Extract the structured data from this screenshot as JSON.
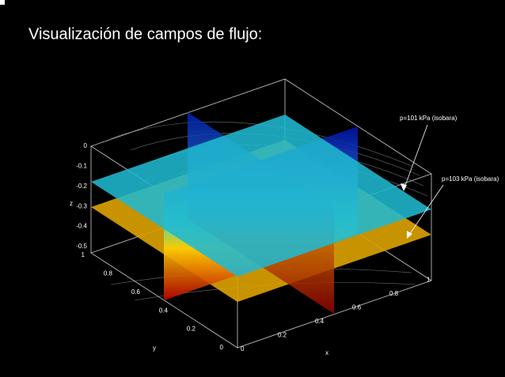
{
  "header": {
    "title": "Visualización de campos de flujo:"
  },
  "plot": {
    "annotations": [
      "p=101 kPa  (isobara)",
      "p=103 kPa (isobara)"
    ],
    "axis_labels": {
      "x": "x",
      "y": "y",
      "z": "z"
    },
    "z_ticks": [
      "0",
      "-0.1",
      "-0.2",
      "-0.3",
      "-0.4",
      "-0.5"
    ],
    "y_ticks": [
      "1",
      "0.8",
      "0.6",
      "0.4",
      "0.2",
      "0"
    ],
    "x_ticks": [
      "0",
      "0.2",
      "0.4",
      "0.6",
      "0.8",
      "1"
    ]
  }
}
